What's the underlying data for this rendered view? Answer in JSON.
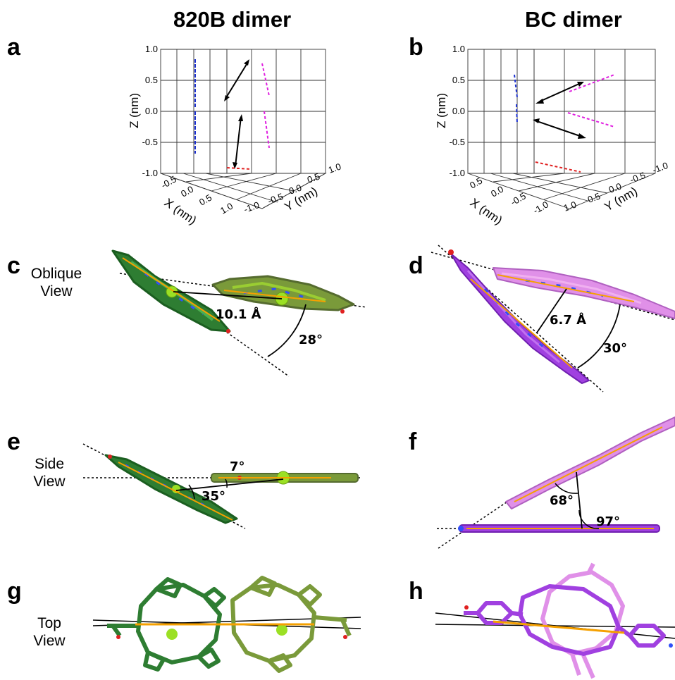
{
  "titles": {
    "left": "820B dimer",
    "right": "BC dimer"
  },
  "panels": [
    {
      "letter": "a"
    },
    {
      "letter": "b"
    },
    {
      "letter": "c"
    },
    {
      "letter": "d"
    },
    {
      "letter": "e"
    },
    {
      "letter": "f"
    },
    {
      "letter": "g"
    },
    {
      "letter": "h"
    }
  ],
  "views": {
    "oblique": [
      "Oblique",
      "View"
    ],
    "side": [
      "Side",
      "View"
    ],
    "top": [
      "Top",
      "View"
    ]
  },
  "plot_a": {
    "z_label": "Z (nm)",
    "x_label": "X (nm)",
    "y_label": "Y (nm)",
    "z_ticks": [
      "1.0",
      "0.5",
      "0.0",
      "-0.5",
      "-1.0"
    ],
    "x_ticks": [
      "-0.5",
      "0.0",
      "0.5",
      "1.0"
    ],
    "y_ticks": [
      "1.0",
      "0.5",
      "0.0",
      "-0.5",
      "-1.0"
    ]
  },
  "plot_b": {
    "z_label": "Z (nm)",
    "x_label": "X (nm)",
    "y_label": "Y (nm)",
    "z_ticks": [
      "1.0",
      "0.5",
      "0.0",
      "-0.5",
      "-1.0"
    ],
    "x_ticks": [
      "0.5",
      "0.0",
      "-0.5",
      "-1.0"
    ],
    "y_ticks": [
      "-1.0",
      "-0.5",
      "0.0",
      "0.5",
      "1.0"
    ]
  },
  "annotations": {
    "c_distance": "10.1 Å",
    "c_angle": "28°",
    "d_distance": "6.7 Å",
    "d_angle": "30°",
    "e_angle_small": "7°",
    "e_angle": "35°",
    "f_angle_1": "68°",
    "f_angle_2": "97°"
  },
  "colors": {
    "green_dark": "#2e7d32",
    "green_olive": "#7a9a3a",
    "magnesium": "#9be024",
    "violet": "#a040e0",
    "pink": "#e090e8",
    "transition_dipole": "#f5a000",
    "nitrogen": "#3050f8",
    "oxygen": "#e02020",
    "dipole_blue": "#1a2fd0",
    "dipole_magenta": "#e020e0",
    "dipole_red": "#e02020"
  }
}
